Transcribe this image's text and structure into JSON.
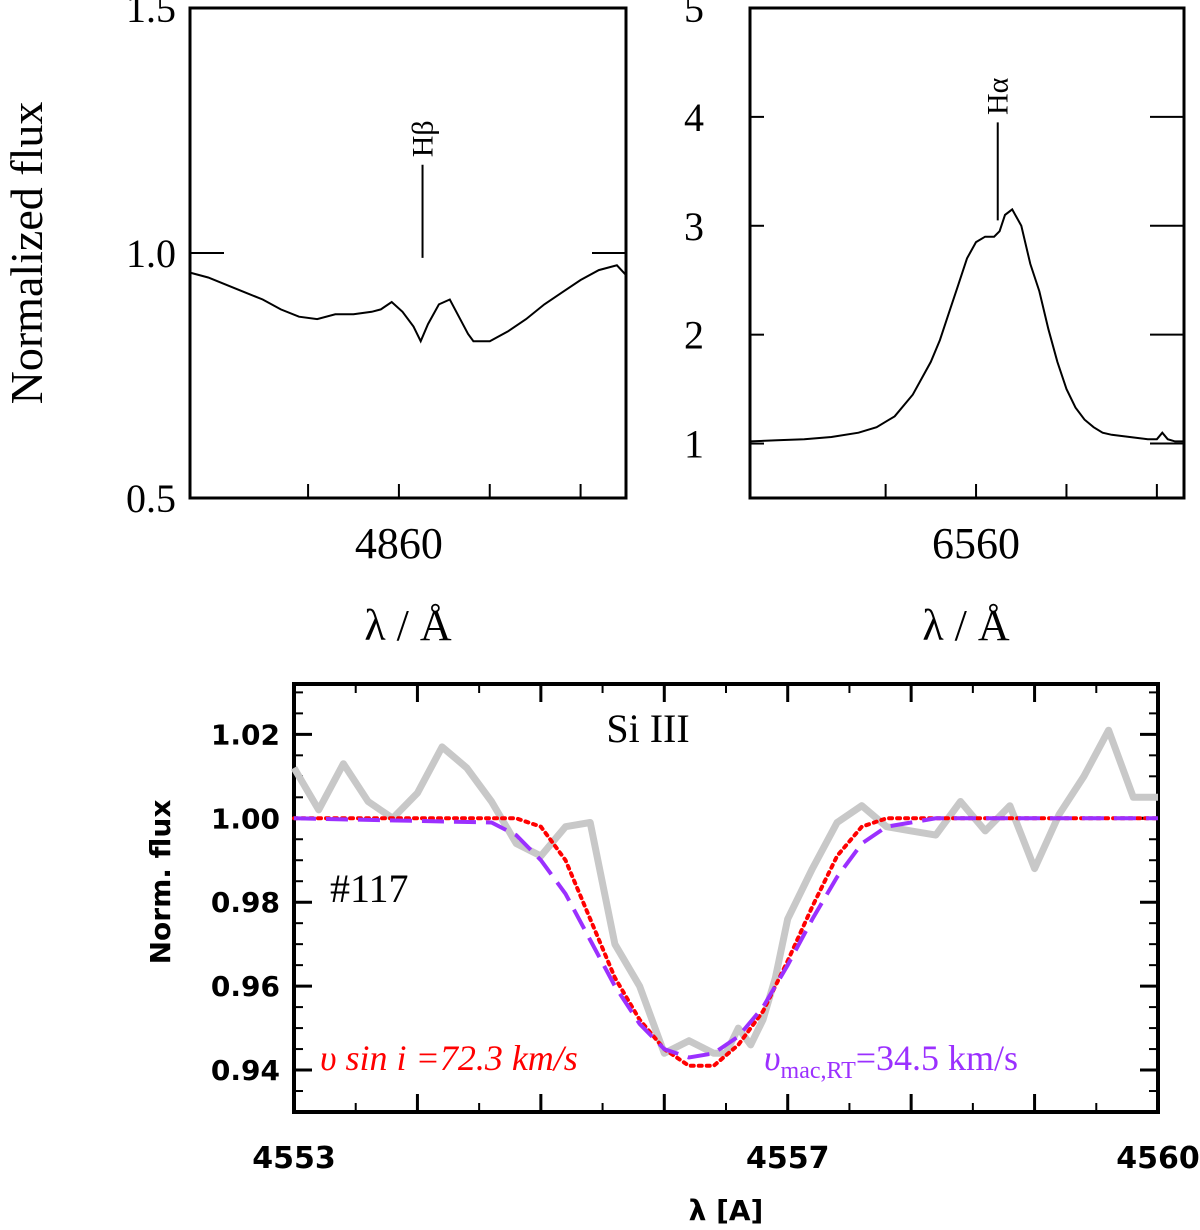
{
  "figure": {
    "shared_ylabel": "Normalized flux"
  },
  "chart_data": [
    {
      "id": "hbeta",
      "type": "line",
      "xlabel": "λ / Å",
      "ylabel": "Normalized flux",
      "xlim": [
        4848.5,
        4872.5
      ],
      "ylim": [
        0.5,
        1.5
      ],
      "xticks": [
        4860
      ],
      "xminor": [
        4855,
        4865,
        4870
      ],
      "yticks": [
        0.5,
        1.0,
        1.5
      ],
      "ytick_labels": [
        "0.5",
        "1.0",
        "1.5"
      ],
      "line_marker": {
        "label": "Hβ",
        "x": 4861.3,
        "y_from": 0.99,
        "y_to": 1.18
      },
      "x": [
        4848.5,
        4849.5,
        4850.5,
        4851.5,
        4852.5,
        4853.5,
        4854.5,
        4855.5,
        4856.5,
        4857.5,
        4858.5,
        4859.0,
        4859.6,
        4860.2,
        4860.8,
        4861.2,
        4861.6,
        4862.2,
        4862.8,
        4863.3,
        4863.8,
        4864.1,
        4864.4,
        4865.0,
        4866.0,
        4867.0,
        4868.0,
        4869.0,
        4870.0,
        4871.0,
        4872.0,
        4872.5
      ],
      "values": [
        0.96,
        0.95,
        0.935,
        0.92,
        0.905,
        0.885,
        0.87,
        0.865,
        0.875,
        0.875,
        0.88,
        0.885,
        0.9,
        0.88,
        0.85,
        0.82,
        0.855,
        0.895,
        0.905,
        0.87,
        0.835,
        0.82,
        0.82,
        0.82,
        0.84,
        0.865,
        0.895,
        0.92,
        0.945,
        0.965,
        0.975,
        0.955
      ]
    },
    {
      "id": "halpha",
      "type": "line",
      "xlabel": "λ / Å",
      "xlim": [
        6547.5,
        6571.5
      ],
      "ylim": [
        0.5,
        5
      ],
      "xticks": [
        6560
      ],
      "xminor": [
        6555,
        6565,
        6570
      ],
      "yticks": [
        1,
        2,
        3,
        4,
        5
      ],
      "ytick_labels": [
        "1",
        "2",
        "3",
        "4",
        "5"
      ],
      "line_marker": {
        "label": "Hα",
        "x": 6561.2,
        "y_from": 3.05,
        "y_to": 3.95
      },
      "x": [
        6547.5,
        6549.0,
        6550.5,
        6552.0,
        6553.5,
        6554.5,
        6555.5,
        6556.5,
        6557.5,
        6558.0,
        6558.5,
        6559.0,
        6559.5,
        6560.0,
        6560.5,
        6561.0,
        6561.3,
        6561.6,
        6562.0,
        6562.5,
        6563.0,
        6563.5,
        6564.0,
        6564.5,
        6565.0,
        6565.5,
        6566.0,
        6566.5,
        6567.0,
        6567.5,
        6568.0,
        6568.5,
        6569.0,
        6569.5,
        6570.0,
        6570.3,
        6570.6,
        6571.0,
        6571.5
      ],
      "values": [
        1.02,
        1.03,
        1.04,
        1.06,
        1.1,
        1.15,
        1.25,
        1.45,
        1.75,
        1.95,
        2.2,
        2.45,
        2.7,
        2.85,
        2.9,
        2.9,
        2.95,
        3.1,
        3.15,
        3.0,
        2.65,
        2.4,
        2.05,
        1.75,
        1.5,
        1.33,
        1.22,
        1.15,
        1.1,
        1.08,
        1.07,
        1.06,
        1.05,
        1.04,
        1.04,
        1.1,
        1.04,
        1.02,
        1.02
      ]
    },
    {
      "id": "si3",
      "type": "line",
      "title": "Si III",
      "star_id": "#117",
      "xlabel": "λ [A]",
      "ylabel": "Norm. flux",
      "xlim": [
        4553,
        4560
      ],
      "ylim": [
        0.93,
        1.032
      ],
      "xticks": [
        4553,
        4557,
        4560
      ],
      "xtick_labels": [
        "4553",
        "4557",
        "4560"
      ],
      "yticks": [
        0.94,
        0.96,
        0.98,
        1.0,
        1.02
      ],
      "ytick_labels": [
        "0.94",
        "0.96",
        "0.98",
        "1.00",
        "1.02"
      ],
      "annotations": {
        "vsini_label": "υ sin i =72.3 km/s",
        "vsini_color": "#ff0000",
        "vmac_main": "υ",
        "vmac_sub": "mac,RT",
        "vmac_value": "=34.5 km/s",
        "vmac_color": "#9b30ff"
      },
      "series": [
        {
          "name": "observed",
          "color": "#c8c8c8",
          "style": "solid",
          "x": [
            4553.0,
            4553.2,
            4553.4,
            4553.6,
            4553.8,
            4554.0,
            4554.2,
            4554.4,
            4554.6,
            4554.8,
            4555.0,
            4555.2,
            4555.4,
            4555.6,
            4555.8,
            4556.0,
            4556.2,
            4556.4,
            4556.5,
            4556.6,
            4556.7,
            4556.8,
            4556.9,
            4557.0,
            4557.2,
            4557.4,
            4557.6,
            4557.8,
            4558.0,
            4558.2,
            4558.4,
            4558.6,
            4558.8,
            4559.0,
            4559.2,
            4559.4,
            4559.6,
            4559.8,
            4560.0
          ],
          "values": [
            1.012,
            1.002,
            1.013,
            1.004,
            1.0,
            1.006,
            1.017,
            1.012,
            1.004,
            0.994,
            0.991,
            0.998,
            0.999,
            0.97,
            0.96,
            0.944,
            0.947,
            0.944,
            0.944,
            0.95,
            0.946,
            0.952,
            0.962,
            0.976,
            0.988,
            0.999,
            1.003,
            0.998,
            0.997,
            0.996,
            1.004,
            0.997,
            1.003,
            0.988,
            1.001,
            1.01,
            1.021,
            1.005,
            1.005
          ]
        },
        {
          "name": "vsini_model",
          "color": "#ff0000",
          "style": "dotted",
          "x": [
            4553.0,
            4554.8,
            4555.0,
            4555.2,
            4555.4,
            4555.6,
            4555.8,
            4556.0,
            4556.2,
            4556.4,
            4556.6,
            4556.8,
            4557.0,
            4557.2,
            4557.4,
            4557.6,
            4557.8,
            4558.0,
            4560.0
          ],
          "values": [
            1.0,
            1.0,
            0.998,
            0.99,
            0.976,
            0.962,
            0.952,
            0.945,
            0.941,
            0.941,
            0.946,
            0.954,
            0.966,
            0.979,
            0.991,
            0.998,
            1.0,
            1.0,
            1.0
          ]
        },
        {
          "name": "vmac_model",
          "color": "#9b30ff",
          "style": "dashed",
          "x": [
            4553.0,
            4554.6,
            4554.8,
            4555.0,
            4555.2,
            4555.4,
            4555.6,
            4555.8,
            4556.0,
            4556.2,
            4556.4,
            4556.6,
            4556.8,
            4557.0,
            4557.2,
            4557.4,
            4557.6,
            4557.8,
            4558.0,
            4558.2,
            4560.0
          ],
          "values": [
            1.0,
            0.999,
            0.996,
            0.99,
            0.982,
            0.971,
            0.96,
            0.951,
            0.945,
            0.943,
            0.944,
            0.948,
            0.955,
            0.965,
            0.976,
            0.986,
            0.994,
            0.998,
            0.999,
            1.0,
            1.0
          ]
        }
      ]
    }
  ]
}
